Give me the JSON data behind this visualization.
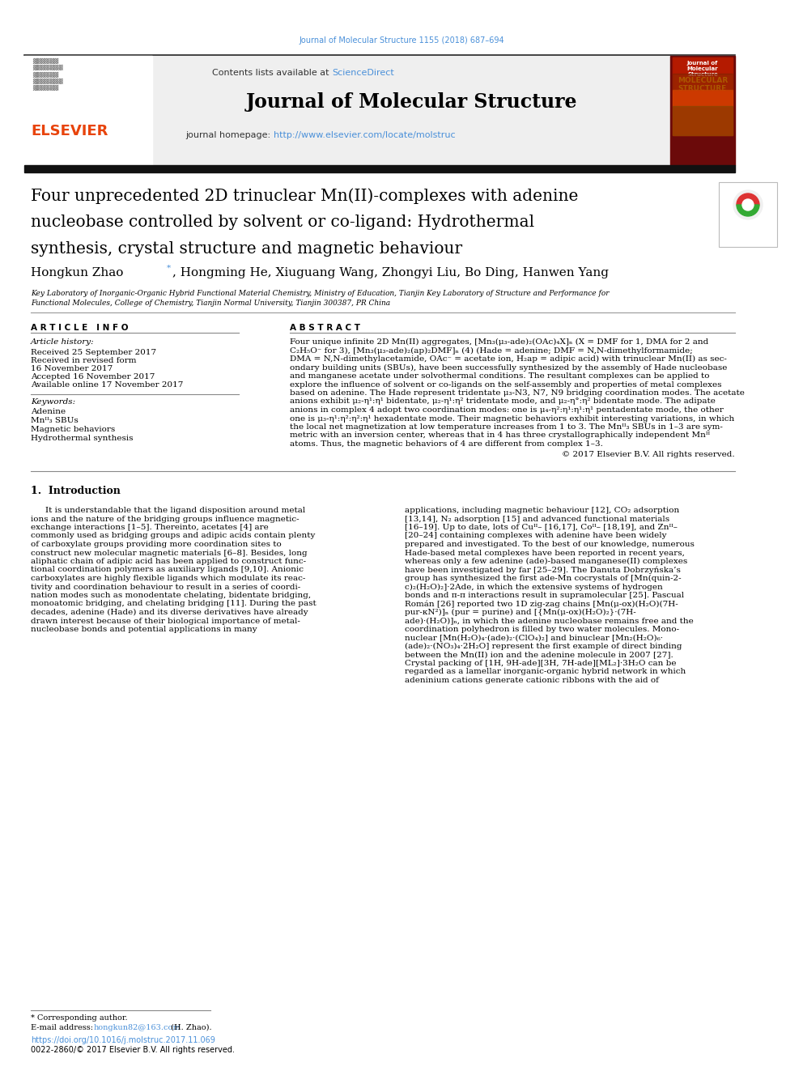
{
  "bg_color": "#ffffff",
  "journal_ref_color": "#4a90d9",
  "journal_ref": "Journal of Molecular Structure 1155 (2018) 687–694",
  "header_bg": "#efefef",
  "link_color": "#4a90d9",
  "black_bar_color": "#111111",
  "journal_name": "Journal of Molecular Structure",
  "journal_homepage_url": "http://www.elsevier.com/locate/molstruc",
  "elsevier_color": "#E8440C",
  "cover_bg": "#8B1010",
  "title_lines": [
    "Four unprecedented 2D trinuclear Mn(II)-complexes with adenine",
    "nucleobase controlled by solvent or co-ligand: Hydrothermal",
    "synthesis, crystal structure and magnetic behaviour"
  ],
  "article_history": [
    "Received 25 September 2017",
    "Received in revised form",
    "16 November 2017",
    "Accepted 16 November 2017",
    "Available online 17 November 2017"
  ],
  "keywords": [
    "Adenine",
    "Mnᴵᴵ₃ SBUs",
    "Magnetic behaviors",
    "Hydrothermal synthesis"
  ],
  "abstract_lines": [
    "Four unique infinite 2D Mn(II) aggregates, [Mn₃(μ₃-ade)₂(OAc)₄X]ₙ (X = DMF for 1, DMA for 2 and",
    "C₂H₅O⁻ for 3), [Mn₃(μ₃-ade)₂(ap)₂DMF]ₙ (4) (Hade = adenine; DMF = N,N-dimethylformamide;",
    "DMA = N,N-dimethylacetamide, OAc⁻ = acetate ion, H₂ap = adipic acid) with trinuclear Mn(II) as sec-",
    "ondary building units (SBUs), have been successfully synthesized by the assembly of Hade nucleobase",
    "and manganese acetate under solvothermal conditions. The resultant complexes can be applied to",
    "explore the influence of solvent or co-ligands on the self-assembly and properties of metal complexes",
    "based on adenine. The Hade represent tridentate μ₃-N3, N7, N9 bridging coordination modes. The acetate",
    "anions exhibit μ₂-η¹:η¹ bidentate, μ₂-η¹:η² tridentate mode, and μ₂-η°:η² bidentate mode. The adipate",
    "anions in complex 4 adopt two coordination modes: one is μ₄-η²:η¹:η¹:η¹ pentadentate mode, the other",
    "one is μ₃-η¹:η²:η²:η¹ hexadentate mode. Their magnetic behaviors exhibit interesting variations, in which",
    "the local net magnetization at low temperature increases from 1 to 3. The Mnᴵᴵ₃ SBUs in 1–3 are sym-",
    "metric with an inversion center, whereas that in 4 has three crystallographically independent Mnᴵᴵ",
    "atoms. Thus, the magnetic behaviors of 4 are different from complex 1–3."
  ],
  "copyright": "© 2017 Elsevier B.V. All rights reserved.",
  "left_intro": [
    "It is understandable that the ligand disposition around metal",
    "ions and the nature of the bridging groups influence magnetic-",
    "exchange interactions [1–5]. Thereinto, acetates [4] are",
    "commonly used as bridging groups and adipic acids contain plenty",
    "of carboxylate groups providing more coordination sites to",
    "construct new molecular magnetic materials [6–8]. Besides, long",
    "aliphatic chain of adipic acid has been applied to construct func-",
    "tional coordination polymers as auxiliary ligands [9,10]. Anionic",
    "carboxylates are highly flexible ligands which modulate its reac-",
    "tivity and coordination behaviour to result in a series of coordi-",
    "nation modes such as monodentate chelating, bidentate bridging,",
    "monoatomic bridging, and chelating bridging [11]. During the past",
    "decades, adenine (Hade) and its diverse derivatives have already",
    "drawn interest because of their biological importance of metal-",
    "nucleobase bonds and potential applications in many"
  ],
  "right_intro": [
    "applications, including magnetic behaviour [12], CO₂ adsorption",
    "[13,14], N₂ adsorption [15] and advanced functional materials",
    "[16–19]. Up to date, lots of Cuᴵᴵ– [16,17], Coᴵᴵ– [18,19], and Znᴵᴵ–",
    "[20–24] containing complexes with adenine have been widely",
    "prepared and investigated. To the best of our knowledge, numerous",
    "Hade-based metal complexes have been reported in recent years,",
    "whereas only a few adenine (ade)-based manganese(II) complexes",
    "have been investigated by far [25–29]. The Danuta Dobrzyńska’s",
    "group has synthesized the first ade-Mn cocrystals of [Mn(quin-2-",
    "c)₂(H₂O)₂]·2Ade, in which the extensive systems of hydrogen",
    "bonds and π-π interactions result in supramolecular [25]. Pascual",
    "Román [26] reported two 1D zig-zag chains [Mn(μ-ox)(H₂O)(7H-",
    "pur-κN²)]ₙ (pur = purine) and [{Mn(μ-ox)(H₂O)₂}·(7H-",
    "ade)·(H₂O)]ₙ, in which the adenine nucleobase remains free and the",
    "coordination polyhedron is filled by two water molecules. Mono-",
    "nuclear [Mn(H₂O)₄·(ade)₂·(ClO₄)₂] and binuclear [Mn₂(H₂O)₆·",
    "(ade)₂·(NO₃)₄·2H₂O] represent the first example of direct binding",
    "between the Mn(II) ion and the adenine molecule in 2007 [27].",
    "Crystal packing of [1H, 9H-ade][3H, 7H-ade][ML₂]·3H₂O can be",
    "regarded as a lamellar inorganic-organic hybrid network in which",
    "adeninium cations generate cationic ribbons with the aid of"
  ],
  "footer_doi": "https://doi.org/10.1016/j.molstruc.2017.11.069",
  "footer_issn": "0022-2860/© 2017 Elsevier B.V. All rights reserved."
}
